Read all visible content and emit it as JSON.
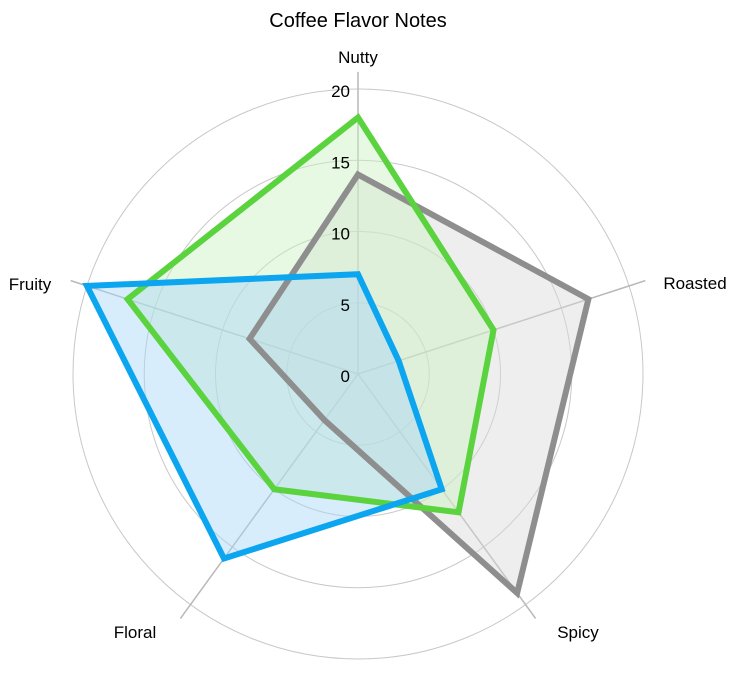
{
  "chart_data": {
    "type": "radar",
    "title": "Coffee Flavor Notes",
    "categories": [
      "Nutty",
      "Roasted",
      "Spicy",
      "Floral",
      "Fruity"
    ],
    "rlim": [
      0,
      20
    ],
    "ticks": [
      0,
      5,
      10,
      15,
      20
    ],
    "tick_labels": [
      "0",
      "5",
      "10",
      "15",
      "20"
    ],
    "grid": true,
    "series": [
      {
        "values": [
          14,
          17,
          19,
          4,
          8
        ],
        "color": "#8e8e8e",
        "fill": "#d9d9d9"
      },
      {
        "values": [
          18,
          10,
          12,
          10,
          17
        ],
        "color": "#5ad33f",
        "fill": "#c9f0c0"
      },
      {
        "values": [
          7,
          3,
          10,
          16,
          20
        ],
        "color": "#0ba5f0",
        "fill": "#a8d8f8"
      }
    ]
  }
}
